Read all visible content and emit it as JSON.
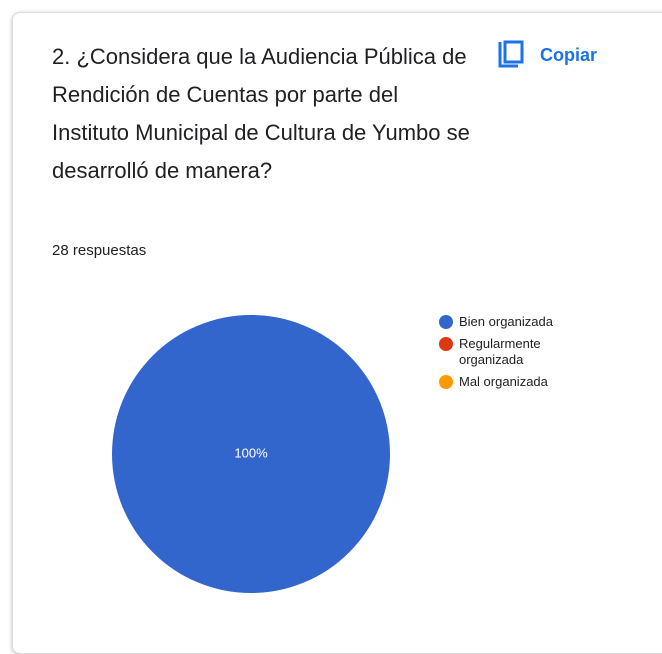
{
  "header": {
    "copy_button": "Copiar"
  },
  "chart_data": {
    "type": "pie",
    "title": "2.    ¿Considera que la Audiencia Pública de Rendición de Cuentas por parte del Instituto Municipal de Cultura de Yumbo se desarrolló de manera?",
    "subtitle": "28 respuestas",
    "categories": [
      "Bien organizada",
      "Regularmente organizada",
      "Mal organizada"
    ],
    "values": [
      100,
      0,
      0
    ],
    "value_labels": [
      "100%",
      null,
      null
    ],
    "colors": [
      "#3366cc",
      "#dc3912",
      "#ff9900"
    ],
    "legend": "right"
  }
}
